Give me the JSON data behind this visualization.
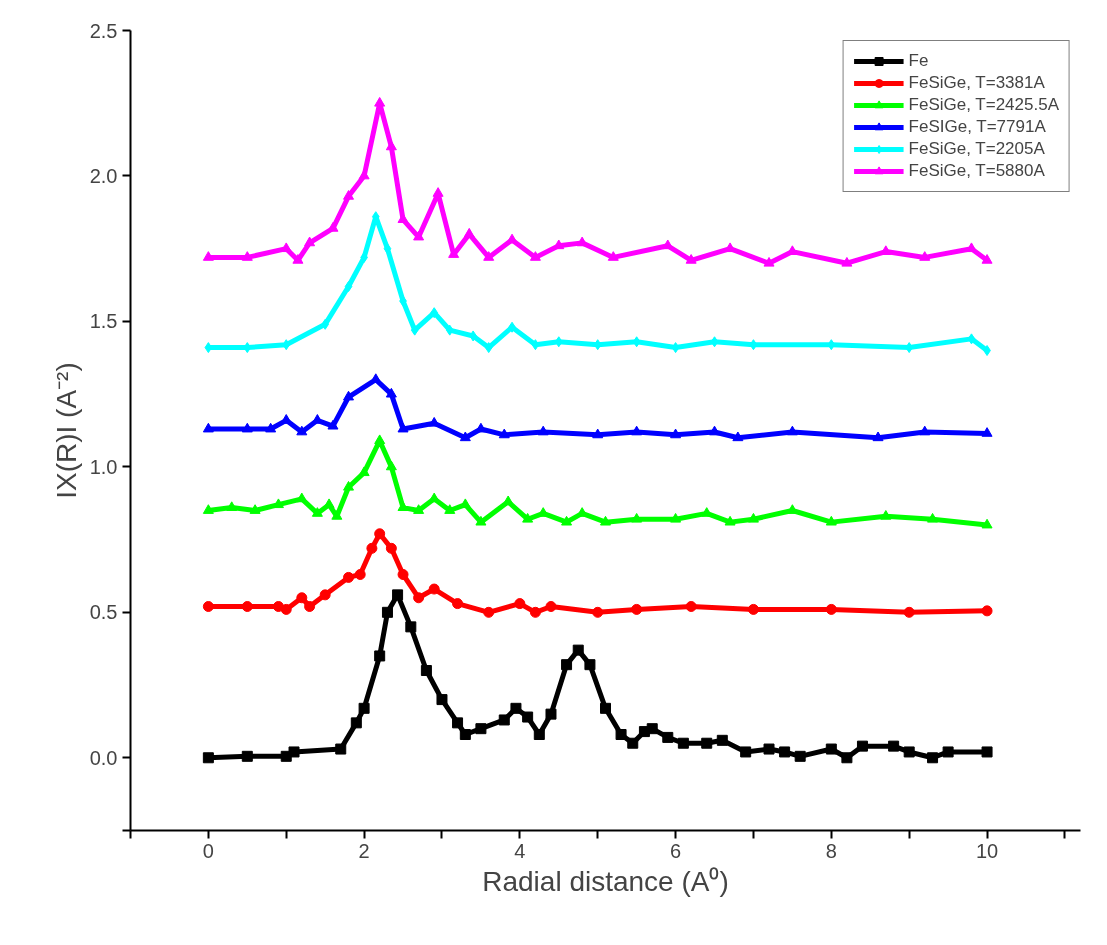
{
  "chart_data": {
    "type": "line",
    "xlabel": "Radial distance (A⁰)",
    "ylabel": "IX(R)I (A⁻²)",
    "xlim": [
      -1,
      11.2
    ],
    "ylim": [
      -0.25,
      2.5
    ],
    "xticks": [
      {
        "value": -1,
        "label": null
      },
      0,
      {
        "value": 1,
        "label": null
      },
      2,
      {
        "value": 3,
        "label": null
      },
      4,
      {
        "value": 5,
        "label": null
      },
      6,
      {
        "value": 7,
        "label": null
      },
      8,
      {
        "value": 9,
        "label": null
      },
      10,
      {
        "value": 11,
        "label": null
      }
    ],
    "yticks": [
      {
        "value": -0.25,
        "label": null
      },
      {
        "value": 0,
        "label": "0.0"
      },
      0.5,
      {
        "value": 1,
        "label": "1.0"
      },
      1.5,
      {
        "value": 2,
        "label": "2.0"
      },
      2.5
    ],
    "grid": false,
    "legend": "top right",
    "line_style": "solid",
    "series": [
      {
        "name": "Fe",
        "color": "#000000",
        "marker": "square",
        "x": [
          0,
          0.5,
          1.0,
          1.1,
          1.7,
          1.9,
          2.0,
          2.2,
          2.3,
          2.43,
          2.6,
          2.8,
          3.0,
          3.2,
          3.3,
          3.5,
          3.8,
          3.95,
          4.1,
          4.25,
          4.4,
          4.6,
          4.75,
          4.9,
          5.1,
          5.3,
          5.45,
          5.6,
          5.7,
          5.9,
          6.1,
          6.4,
          6.6,
          6.9,
          7.2,
          7.4,
          7.6,
          8.0,
          8.2,
          8.4,
          8.8,
          9.0,
          9.3,
          9.5,
          10
        ],
        "values": [
          0.0,
          0.005,
          0.005,
          0.02,
          0.03,
          0.12,
          0.17,
          0.35,
          0.5,
          0.56,
          0.45,
          0.3,
          0.2,
          0.12,
          0.08,
          0.1,
          0.13,
          0.17,
          0.14,
          0.08,
          0.15,
          0.32,
          0.37,
          0.32,
          0.17,
          0.08,
          0.05,
          0.09,
          0.1,
          0.07,
          0.05,
          0.05,
          0.06,
          0.02,
          0.03,
          0.02,
          0.005,
          0.03,
          0.0,
          0.04,
          0.04,
          0.02,
          0.0,
          0.02,
          0.02
        ]
      },
      {
        "name": "FeSiGe, T=3381A",
        "color": "#ff0000",
        "marker": "circle",
        "x": [
          0,
          0.5,
          0.9,
          1.0,
          1.2,
          1.3,
          1.5,
          1.8,
          1.95,
          2.1,
          2.2,
          2.35,
          2.5,
          2.7,
          2.9,
          3.2,
          3.6,
          4.0,
          4.2,
          4.4,
          5.0,
          5.5,
          6.2,
          7.0,
          8.0,
          9.0,
          10
        ],
        "values": [
          0.52,
          0.52,
          0.52,
          0.51,
          0.55,
          0.52,
          0.56,
          0.62,
          0.63,
          0.72,
          0.77,
          0.72,
          0.63,
          0.55,
          0.58,
          0.53,
          0.5,
          0.53,
          0.5,
          0.52,
          0.5,
          0.51,
          0.52,
          0.51,
          0.51,
          0.5,
          0.505
        ]
      },
      {
        "name": "FeSiGe, T=2425.5A",
        "color": "#00ff00",
        "marker": "triangle",
        "x": [
          0,
          0.3,
          0.6,
          0.9,
          1.2,
          1.4,
          1.55,
          1.65,
          1.8,
          2.0,
          2.2,
          2.35,
          2.5,
          2.7,
          2.9,
          3.1,
          3.3,
          3.5,
          3.85,
          4.1,
          4.3,
          4.6,
          4.8,
          5.1,
          5.5,
          6.0,
          6.4,
          6.7,
          7.0,
          7.5,
          8.0,
          8.7,
          9.3,
          10
        ],
        "values": [
          0.85,
          0.86,
          0.85,
          0.87,
          0.89,
          0.84,
          0.87,
          0.83,
          0.93,
          0.98,
          1.09,
          1.0,
          0.86,
          0.85,
          0.89,
          0.85,
          0.87,
          0.81,
          0.88,
          0.82,
          0.84,
          0.81,
          0.84,
          0.81,
          0.82,
          0.82,
          0.84,
          0.81,
          0.82,
          0.85,
          0.81,
          0.83,
          0.82,
          0.8
        ]
      },
      {
        "name": "FeSIGe, T=7791A",
        "color": "#0000ff",
        "marker": "triangle",
        "x": [
          0,
          0.5,
          0.8,
          1.0,
          1.2,
          1.4,
          1.6,
          1.8,
          2.15,
          2.35,
          2.5,
          2.9,
          3.3,
          3.5,
          3.8,
          4.3,
          5.0,
          5.5,
          6.0,
          6.5,
          6.8,
          7.5,
          8.6,
          9.2,
          10
        ],
        "values": [
          1.13,
          1.13,
          1.13,
          1.16,
          1.12,
          1.16,
          1.14,
          1.24,
          1.3,
          1.25,
          1.13,
          1.15,
          1.1,
          1.13,
          1.11,
          1.12,
          1.11,
          1.12,
          1.11,
          1.12,
          1.1,
          1.12,
          1.1,
          1.12,
          1.115
        ]
      },
      {
        "name": "FeSiGe, T=2205A",
        "color": "#00ffff",
        "marker": "diamond",
        "x": [
          0,
          0.5,
          1.0,
          1.5,
          1.8,
          2.0,
          2.15,
          2.3,
          2.5,
          2.65,
          2.9,
          3.1,
          3.4,
          3.6,
          3.9,
          4.2,
          4.5,
          5.0,
          5.5,
          6.0,
          6.5,
          7.0,
          8.0,
          9.0,
          9.8,
          10
        ],
        "values": [
          1.41,
          1.41,
          1.42,
          1.49,
          1.62,
          1.72,
          1.86,
          1.75,
          1.57,
          1.47,
          1.53,
          1.47,
          1.45,
          1.41,
          1.48,
          1.42,
          1.43,
          1.42,
          1.43,
          1.41,
          1.43,
          1.42,
          1.42,
          1.41,
          1.44,
          1.4
        ]
      },
      {
        "name": "FeSiGe, T=5880A",
        "color": "#ff00ff",
        "marker": "triangle",
        "x": [
          0,
          0.5,
          1.0,
          1.15,
          1.3,
          1.6,
          1.8,
          2.0,
          2.2,
          2.35,
          2.5,
          2.7,
          2.95,
          3.15,
          3.35,
          3.6,
          3.9,
          4.2,
          4.5,
          4.8,
          5.2,
          5.9,
          6.2,
          6.7,
          7.2,
          7.5,
          8.2,
          8.7,
          9.2,
          9.8,
          10
        ],
        "values": [
          1.72,
          1.72,
          1.75,
          1.71,
          1.77,
          1.82,
          1.93,
          2.0,
          2.25,
          2.1,
          1.85,
          1.79,
          1.94,
          1.73,
          1.8,
          1.72,
          1.78,
          1.72,
          1.76,
          1.77,
          1.72,
          1.76,
          1.71,
          1.75,
          1.7,
          1.74,
          1.7,
          1.74,
          1.72,
          1.75,
          1.71
        ]
      }
    ]
  }
}
